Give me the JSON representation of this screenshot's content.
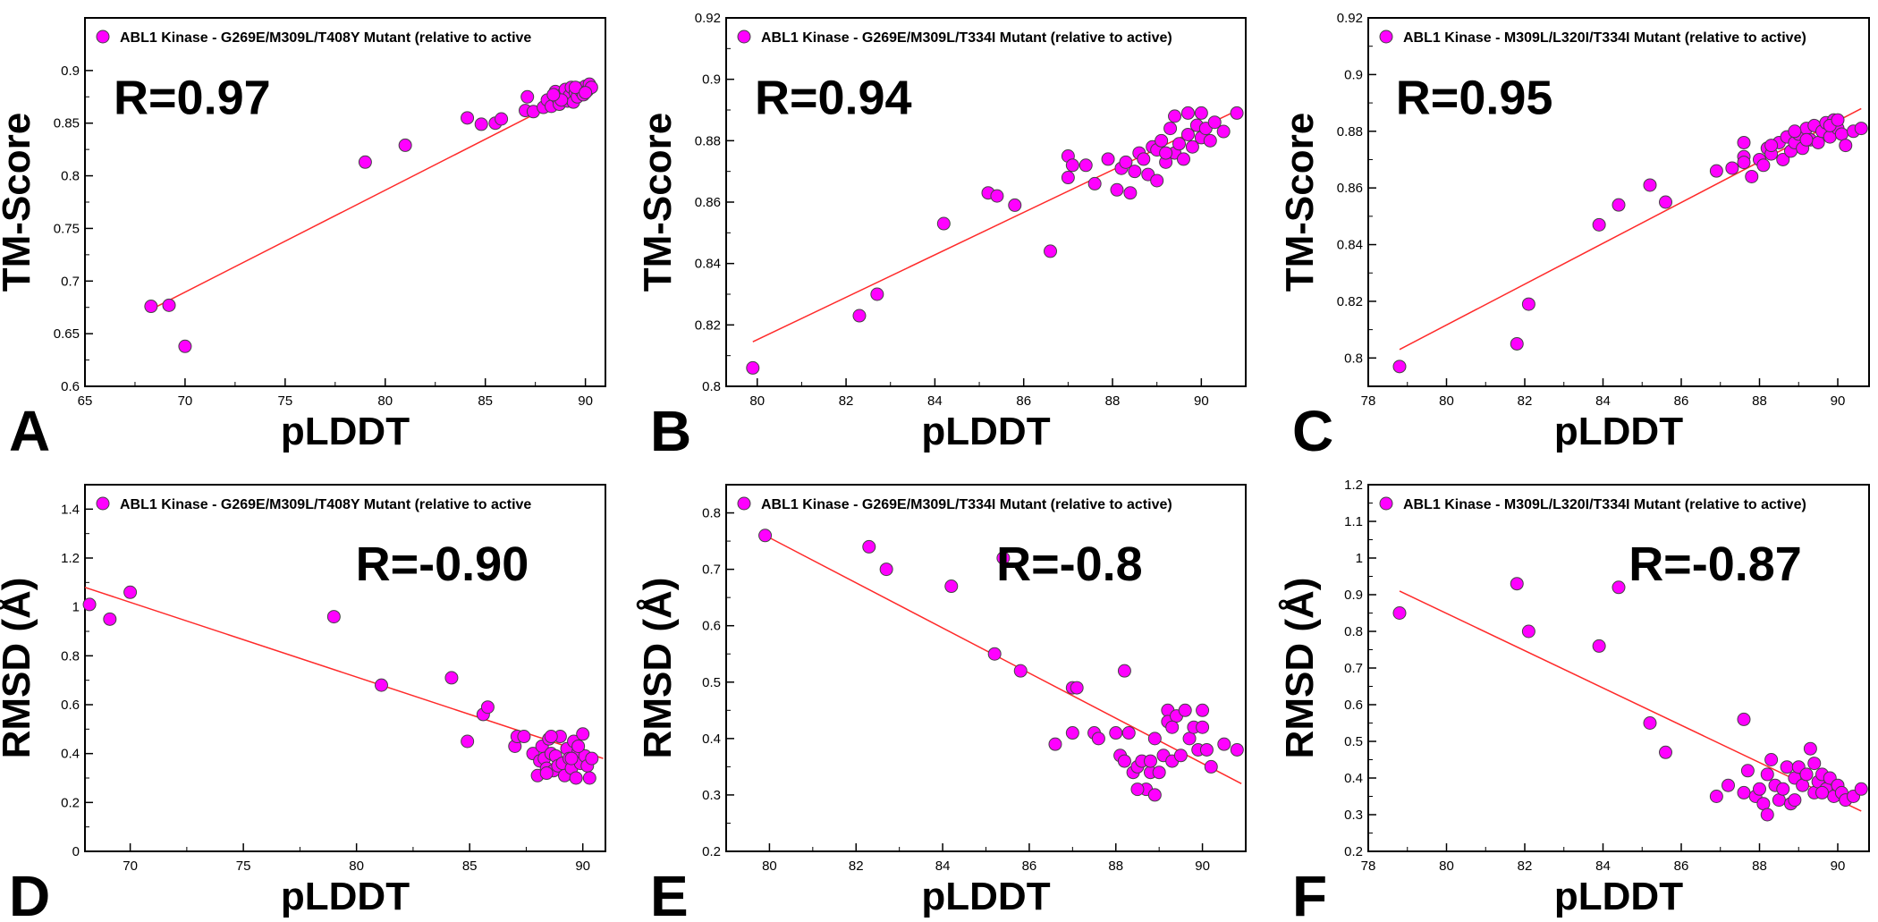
{
  "colors": {
    "marker_fill": "#ff00ff",
    "marker_stroke": "#444444",
    "fit_line": "#ff2a2a",
    "axes": "#000000"
  },
  "chart_data": [
    {
      "panel": "A",
      "type": "scatter",
      "metric": "tm",
      "legend": "ABL1 Kinase - G269E/M309L/T408Y Mutant  (relative to active",
      "r_label": "R=0.97",
      "xlabel": "pLDDT",
      "ylabel": "TM-Score",
      "xlim": [
        65,
        91
      ],
      "ylim": [
        0.6,
        0.95
      ],
      "xticks": [
        65,
        70,
        75,
        80,
        85,
        90
      ],
      "xtick_labels": [
        "65",
        "70",
        "75",
        "80",
        "85",
        "90"
      ],
      "yticks": [
        0.6,
        0.65,
        0.7,
        0.75,
        0.8,
        0.85,
        0.9
      ],
      "ytick_labels": [
        "0.6",
        "0.65",
        "0.7",
        "0.75",
        "0.8",
        "0.85",
        "0.9"
      ],
      "fit": [
        [
          68.3,
          0.673
        ],
        [
          90.5,
          0.888
        ]
      ],
      "points": [
        [
          68.3,
          0.676
        ],
        [
          69.2,
          0.677
        ],
        [
          70.0,
          0.638
        ],
        [
          79.0,
          0.813
        ],
        [
          81.0,
          0.829
        ],
        [
          84.1,
          0.855
        ],
        [
          84.8,
          0.849
        ],
        [
          85.5,
          0.85
        ],
        [
          85.8,
          0.854
        ],
        [
          87.0,
          0.862
        ],
        [
          87.1,
          0.875
        ],
        [
          87.4,
          0.861
        ],
        [
          87.9,
          0.865
        ],
        [
          88.1,
          0.872
        ],
        [
          88.3,
          0.866
        ],
        [
          88.5,
          0.88
        ],
        [
          88.6,
          0.874
        ],
        [
          88.7,
          0.868
        ],
        [
          88.9,
          0.878
        ],
        [
          89.0,
          0.882
        ],
        [
          89.1,
          0.871
        ],
        [
          89.2,
          0.876
        ],
        [
          89.3,
          0.884
        ],
        [
          89.4,
          0.87
        ],
        [
          89.5,
          0.879
        ],
        [
          89.6,
          0.875
        ],
        [
          89.7,
          0.883
        ],
        [
          89.8,
          0.88
        ],
        [
          89.9,
          0.877
        ],
        [
          90.0,
          0.885
        ],
        [
          90.1,
          0.881
        ],
        [
          90.2,
          0.887
        ],
        [
          90.3,
          0.884
        ],
        [
          88.8,
          0.872
        ],
        [
          89.5,
          0.884
        ],
        [
          90.0,
          0.879
        ],
        [
          88.4,
          0.877
        ]
      ]
    },
    {
      "panel": "B",
      "type": "scatter",
      "metric": "tm",
      "legend": "ABL1 Kinase - G269E/M309L/T334I Mutant  (relative to active)",
      "r_label": "R=0.94",
      "xlabel": "pLDDT",
      "ylabel": "TM-Score",
      "xlim": [
        79.3,
        91
      ],
      "ylim": [
        0.8,
        0.92
      ],
      "xticks": [
        80,
        82,
        84,
        86,
        88,
        90
      ],
      "xtick_labels": [
        "80",
        "82",
        "84",
        "86",
        "88",
        "90"
      ],
      "yticks": [
        0.8,
        0.82,
        0.84,
        0.86,
        0.88,
        0.9,
        0.92
      ],
      "ytick_labels": [
        "0.8",
        "0.82",
        "0.84",
        "0.86",
        "0.88",
        "0.9",
        "0.92"
      ],
      "fit": [
        [
          79.9,
          0.8145
        ],
        [
          90.9,
          0.8905
        ]
      ],
      "points": [
        [
          79.9,
          0.806
        ],
        [
          82.3,
          0.823
        ],
        [
          82.7,
          0.83
        ],
        [
          84.2,
          0.853
        ],
        [
          85.2,
          0.863
        ],
        [
          85.4,
          0.862
        ],
        [
          85.8,
          0.859
        ],
        [
          86.6,
          0.844
        ],
        [
          87.0,
          0.875
        ],
        [
          87.0,
          0.868
        ],
        [
          87.1,
          0.872
        ],
        [
          87.4,
          0.872
        ],
        [
          87.6,
          0.866
        ],
        [
          87.9,
          0.874
        ],
        [
          88.1,
          0.864
        ],
        [
          88.2,
          0.871
        ],
        [
          88.3,
          0.873
        ],
        [
          88.4,
          0.863
        ],
        [
          88.5,
          0.87
        ],
        [
          88.6,
          0.876
        ],
        [
          88.7,
          0.874
        ],
        [
          88.8,
          0.869
        ],
        [
          88.9,
          0.878
        ],
        [
          89.0,
          0.877
        ],
        [
          89.0,
          0.867
        ],
        [
          89.1,
          0.88
        ],
        [
          89.2,
          0.873
        ],
        [
          89.3,
          0.884
        ],
        [
          89.4,
          0.876
        ],
        [
          89.4,
          0.888
        ],
        [
          89.5,
          0.879
        ],
        [
          89.6,
          0.874
        ],
        [
          89.7,
          0.882
        ],
        [
          89.8,
          0.878
        ],
        [
          89.9,
          0.885
        ],
        [
          90.0,
          0.881
        ],
        [
          90.0,
          0.889
        ],
        [
          90.1,
          0.884
        ],
        [
          90.2,
          0.88
        ],
        [
          90.3,
          0.886
        ],
        [
          90.5,
          0.883
        ],
        [
          90.8,
          0.889
        ],
        [
          89.2,
          0.876
        ],
        [
          89.7,
          0.889
        ]
      ]
    },
    {
      "panel": "C",
      "type": "scatter",
      "metric": "tm",
      "legend": "ABL1 Kinase - M309L/L320I/T334I Mutant  (relative to active)",
      "r_label": "R=0.95",
      "xlabel": "pLDDT",
      "ylabel": "TM-Score",
      "xlim": [
        78,
        90.8
      ],
      "ylim": [
        0.79,
        0.92
      ],
      "xticks": [
        78,
        80,
        82,
        84,
        86,
        88,
        90
      ],
      "xtick_labels": [
        "78",
        "80",
        "82",
        "84",
        "86",
        "88",
        "90"
      ],
      "yticks": [
        0.8,
        0.82,
        0.84,
        0.86,
        0.88,
        0.9,
        0.92
      ],
      "ytick_labels": [
        "0.8",
        "0.82",
        "0.84",
        "0.86",
        "0.88",
        "0.9",
        "0.92"
      ],
      "fit": [
        [
          78.8,
          0.803
        ],
        [
          90.6,
          0.888
        ]
      ],
      "points": [
        [
          78.8,
          0.797
        ],
        [
          81.8,
          0.805
        ],
        [
          82.1,
          0.819
        ],
        [
          83.9,
          0.847
        ],
        [
          84.4,
          0.854
        ],
        [
          85.2,
          0.861
        ],
        [
          85.6,
          0.855
        ],
        [
          86.9,
          0.866
        ],
        [
          87.3,
          0.867
        ],
        [
          87.6,
          0.871
        ],
        [
          87.6,
          0.876
        ],
        [
          87.8,
          0.864
        ],
        [
          88.0,
          0.87
        ],
        [
          88.1,
          0.868
        ],
        [
          88.2,
          0.874
        ],
        [
          88.3,
          0.872
        ],
        [
          88.5,
          0.876
        ],
        [
          88.6,
          0.87
        ],
        [
          88.7,
          0.878
        ],
        [
          88.8,
          0.873
        ],
        [
          88.9,
          0.876
        ],
        [
          89.0,
          0.879
        ],
        [
          89.1,
          0.874
        ],
        [
          89.2,
          0.881
        ],
        [
          89.3,
          0.877
        ],
        [
          89.4,
          0.882
        ],
        [
          89.5,
          0.876
        ],
        [
          89.6,
          0.88
        ],
        [
          89.7,
          0.883
        ],
        [
          89.8,
          0.878
        ],
        [
          89.9,
          0.884
        ],
        [
          90.0,
          0.881
        ],
        [
          90.1,
          0.879
        ],
        [
          90.2,
          0.875
        ],
        [
          90.4,
          0.88
        ],
        [
          90.6,
          0.881
        ],
        [
          87.6,
          0.869
        ],
        [
          88.3,
          0.875
        ],
        [
          89.2,
          0.877
        ],
        [
          89.8,
          0.882
        ],
        [
          90.0,
          0.884
        ],
        [
          88.9,
          0.88
        ]
      ]
    },
    {
      "panel": "D",
      "type": "scatter",
      "metric": "rmsd",
      "legend": "ABL1 Kinase - G269E/M309L/T408Y Mutant  (relative to active",
      "r_label": "R=-0.90",
      "xlabel": "pLDDT",
      "ylabel": "RMSD (Å)",
      "xlim": [
        68,
        91
      ],
      "ylim": [
        0,
        1.5
      ],
      "xticks": [
        70,
        75,
        80,
        85,
        90
      ],
      "xtick_labels": [
        "70",
        "75",
        "80",
        "85",
        "90"
      ],
      "yticks": [
        0,
        0.2,
        0.4,
        0.6,
        0.8,
        1.0,
        1.2,
        1.4
      ],
      "ytick_labels": [
        "0",
        "0.2",
        "0.4",
        "0.6",
        "0.8",
        "1",
        "1.2",
        "1.4"
      ],
      "fit": [
        [
          68.0,
          1.08
        ],
        [
          90.9,
          0.38
        ]
      ],
      "points": [
        [
          68.2,
          1.01
        ],
        [
          69.1,
          0.95
        ],
        [
          70.0,
          1.06
        ],
        [
          79.0,
          0.96
        ],
        [
          81.1,
          0.68
        ],
        [
          84.2,
          0.71
        ],
        [
          84.9,
          0.45
        ],
        [
          85.6,
          0.56
        ],
        [
          85.8,
          0.59
        ],
        [
          87.0,
          0.43
        ],
        [
          87.1,
          0.47
        ],
        [
          87.4,
          0.47
        ],
        [
          87.8,
          0.4
        ],
        [
          88.0,
          0.31
        ],
        [
          88.1,
          0.37
        ],
        [
          88.2,
          0.43
        ],
        [
          88.3,
          0.38
        ],
        [
          88.4,
          0.34
        ],
        [
          88.5,
          0.46
        ],
        [
          88.6,
          0.4
        ],
        [
          88.7,
          0.33
        ],
        [
          88.8,
          0.39
        ],
        [
          88.9,
          0.35
        ],
        [
          89.0,
          0.47
        ],
        [
          89.1,
          0.36
        ],
        [
          89.2,
          0.31
        ],
        [
          89.3,
          0.42
        ],
        [
          89.4,
          0.38
        ],
        [
          89.5,
          0.34
        ],
        [
          89.6,
          0.45
        ],
        [
          89.7,
          0.3
        ],
        [
          89.8,
          0.41
        ],
        [
          89.9,
          0.36
        ],
        [
          90.0,
          0.48
        ],
        [
          90.1,
          0.39
        ],
        [
          90.2,
          0.35
        ],
        [
          90.4,
          0.38
        ],
        [
          88.6,
          0.47
        ],
        [
          89.8,
          0.43
        ],
        [
          90.3,
          0.3
        ],
        [
          88.4,
          0.32
        ],
        [
          89.5,
          0.38
        ]
      ]
    },
    {
      "panel": "E",
      "type": "scatter",
      "metric": "rmsd",
      "legend": "ABL1 Kinase - G269E/M309L/T334I Mutant  (relative to active)",
      "r_label": "R=-0.8",
      "xlabel": "pLDDT",
      "ylabel": "RMSD (Å)",
      "xlim": [
        79,
        91
      ],
      "ylim": [
        0.2,
        0.85
      ],
      "xticks": [
        80,
        82,
        84,
        86,
        88,
        90
      ],
      "xtick_labels": [
        "80",
        "82",
        "84",
        "86",
        "88",
        "90"
      ],
      "yticks": [
        0.2,
        0.3,
        0.4,
        0.5,
        0.6,
        0.7,
        0.8
      ],
      "ytick_labels": [
        "0.2",
        "0.3",
        "0.4",
        "0.5",
        "0.6",
        "0.7",
        "0.8"
      ],
      "fit": [
        [
          79.9,
          0.76
        ],
        [
          90.9,
          0.32
        ]
      ],
      "points": [
        [
          79.9,
          0.76
        ],
        [
          82.3,
          0.74
        ],
        [
          82.7,
          0.7
        ],
        [
          84.2,
          0.67
        ],
        [
          85.2,
          0.55
        ],
        [
          85.4,
          0.72
        ],
        [
          85.8,
          0.52
        ],
        [
          86.6,
          0.39
        ],
        [
          87.0,
          0.49
        ],
        [
          87.0,
          0.41
        ],
        [
          87.1,
          0.49
        ],
        [
          87.5,
          0.41
        ],
        [
          87.6,
          0.4
        ],
        [
          88.0,
          0.41
        ],
        [
          88.1,
          0.37
        ],
        [
          88.2,
          0.52
        ],
        [
          88.2,
          0.36
        ],
        [
          88.3,
          0.41
        ],
        [
          88.4,
          0.34
        ],
        [
          88.5,
          0.35
        ],
        [
          88.6,
          0.36
        ],
        [
          88.7,
          0.31
        ],
        [
          88.8,
          0.34
        ],
        [
          88.9,
          0.4
        ],
        [
          88.9,
          0.3
        ],
        [
          89.0,
          0.34
        ],
        [
          89.1,
          0.37
        ],
        [
          89.2,
          0.45
        ],
        [
          89.2,
          0.43
        ],
        [
          89.3,
          0.36
        ],
        [
          89.4,
          0.44
        ],
        [
          89.5,
          0.37
        ],
        [
          89.6,
          0.45
        ],
        [
          89.7,
          0.4
        ],
        [
          89.8,
          0.42
        ],
        [
          89.9,
          0.38
        ],
        [
          90.0,
          0.45
        ],
        [
          90.0,
          0.42
        ],
        [
          90.1,
          0.38
        ],
        [
          90.2,
          0.35
        ],
        [
          90.5,
          0.39
        ],
        [
          90.8,
          0.38
        ],
        [
          88.8,
          0.36
        ],
        [
          89.3,
          0.42
        ],
        [
          88.5,
          0.31
        ]
      ]
    },
    {
      "panel": "F",
      "type": "scatter",
      "metric": "rmsd",
      "legend": "ABL1 Kinase - M309L/L320I/T334I Mutant  (relative to active)",
      "r_label": "R=-0.87",
      "xlabel": "pLDDT",
      "ylabel": "RMSD (Å)",
      "xlim": [
        78,
        90.8
      ],
      "ylim": [
        0.2,
        1.2
      ],
      "xticks": [
        78,
        80,
        82,
        84,
        86,
        88,
        90
      ],
      "xtick_labels": [
        "78",
        "80",
        "82",
        "84",
        "86",
        "88",
        "90"
      ],
      "yticks": [
        0.2,
        0.3,
        0.4,
        0.5,
        0.6,
        0.7,
        0.8,
        0.9,
        1.0,
        1.1,
        1.2
      ],
      "ytick_labels": [
        "0.2",
        "0.3",
        "0.4",
        "0.5",
        "0.6",
        "0.7",
        "0.8",
        "0.9",
        "1",
        "1.1",
        "1.2"
      ],
      "fit": [
        [
          78.8,
          0.91
        ],
        [
          90.6,
          0.31
        ]
      ],
      "points": [
        [
          78.8,
          0.85
        ],
        [
          81.8,
          0.93
        ],
        [
          82.1,
          0.8
        ],
        [
          83.9,
          0.76
        ],
        [
          84.4,
          0.92
        ],
        [
          85.2,
          0.55
        ],
        [
          85.6,
          0.47
        ],
        [
          86.9,
          0.35
        ],
        [
          87.2,
          0.38
        ],
        [
          87.6,
          0.56
        ],
        [
          87.6,
          0.36
        ],
        [
          87.7,
          0.42
        ],
        [
          87.9,
          0.35
        ],
        [
          88.0,
          0.37
        ],
        [
          88.1,
          0.33
        ],
        [
          88.2,
          0.41
        ],
        [
          88.2,
          0.3
        ],
        [
          88.3,
          0.45
        ],
        [
          88.4,
          0.38
        ],
        [
          88.5,
          0.34
        ],
        [
          88.6,
          0.37
        ],
        [
          88.7,
          0.43
        ],
        [
          88.8,
          0.33
        ],
        [
          88.9,
          0.4
        ],
        [
          89.0,
          0.43
        ],
        [
          89.1,
          0.38
        ],
        [
          89.2,
          0.41
        ],
        [
          89.3,
          0.48
        ],
        [
          89.4,
          0.36
        ],
        [
          89.4,
          0.44
        ],
        [
          89.5,
          0.39
        ],
        [
          89.6,
          0.41
        ],
        [
          89.7,
          0.37
        ],
        [
          89.8,
          0.4
        ],
        [
          89.9,
          0.35
        ],
        [
          90.0,
          0.38
        ],
        [
          90.1,
          0.36
        ],
        [
          90.2,
          0.34
        ],
        [
          90.4,
          0.35
        ],
        [
          90.6,
          0.37
        ],
        [
          88.9,
          0.34
        ],
        [
          89.6,
          0.36
        ]
      ]
    }
  ]
}
